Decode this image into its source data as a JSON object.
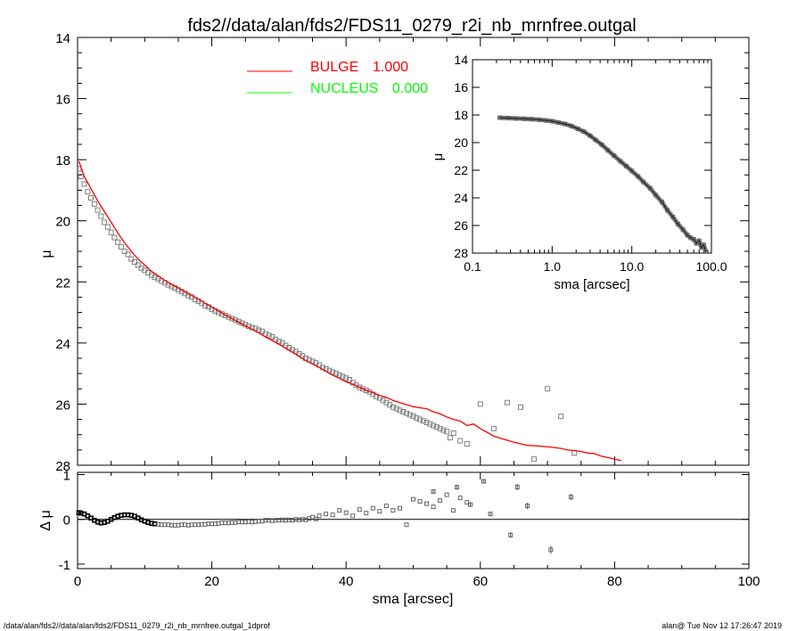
{
  "footer": {
    "left": "/data/alan/fds2//data/alan/fds2/FDS11_0279_r2i_nb_mrnfree.outgal_1dprof",
    "right": "alan@  Tue Nov 12 17:26:47 2019"
  },
  "colors": {
    "bulge": "#ff0000",
    "nucleus": "#00ff00",
    "data": "#808080"
  },
  "chart_data": [
    {
      "id": "main",
      "type": "scatter",
      "title": "fds2//data/alan/fds2/FDS11_0279_r2i_nb_mrnfree.outgal",
      "xlabel": "",
      "ylabel": "μ",
      "xlim": [
        0,
        100
      ],
      "ylim": [
        28,
        14
      ],
      "y_inverted": true,
      "x_ticks": [
        0,
        20,
        40,
        60,
        80,
        100
      ],
      "y_ticks": [
        14,
        16,
        18,
        20,
        22,
        24,
        26,
        28
      ],
      "legend": [
        {
          "label": "BULGE",
          "value": "1.000",
          "color": "#ff0000"
        },
        {
          "label": "NUCLEUS",
          "value": "0.000",
          "color": "#00ff00"
        }
      ],
      "legend_position": "top-center",
      "series": [
        {
          "name": "BULGE",
          "kind": "line",
          "x": [
            0.2,
            1,
            2,
            3,
            4,
            5,
            6,
            7,
            8,
            9,
            10,
            11,
            12,
            13,
            14,
            15,
            16,
            17,
            18,
            19,
            20,
            21,
            22,
            23,
            24,
            25,
            26,
            27,
            28,
            29,
            30,
            31,
            32,
            33,
            34,
            35,
            36,
            37,
            38,
            39,
            40,
            41,
            42,
            43,
            44,
            45,
            46,
            47,
            48,
            49,
            50,
            51,
            52,
            53,
            54,
            55,
            56,
            57,
            58,
            59,
            60,
            61,
            62,
            63,
            64,
            65,
            66,
            67,
            68,
            69,
            70,
            71,
            72,
            73,
            74,
            75,
            76,
            77,
            78,
            79,
            80,
            81
          ],
          "y": [
            18.05,
            18.55,
            18.95,
            19.35,
            19.7,
            20.05,
            20.4,
            20.72,
            21.0,
            21.25,
            21.45,
            21.65,
            21.8,
            21.95,
            22.08,
            22.2,
            22.32,
            22.44,
            22.56,
            22.7,
            22.82,
            22.95,
            23.08,
            23.2,
            23.32,
            23.44,
            23.55,
            23.67,
            23.8,
            23.92,
            24.04,
            24.17,
            24.3,
            24.44,
            24.57,
            24.68,
            24.8,
            24.92,
            25.05,
            25.15,
            25.27,
            25.35,
            25.45,
            25.55,
            25.62,
            25.72,
            25.78,
            25.88,
            25.95,
            26.02,
            26.08,
            26.12,
            26.15,
            26.25,
            26.32,
            26.42,
            26.5,
            26.55,
            26.7,
            26.65,
            26.8,
            26.92,
            27.05,
            27.12,
            27.18,
            27.25,
            27.3,
            27.35,
            27.36,
            27.38,
            27.4,
            27.42,
            27.45,
            27.5,
            27.52,
            27.55,
            27.6,
            27.62,
            27.7,
            27.75,
            27.8,
            27.85
          ]
        },
        {
          "name": "NUCLEUS",
          "kind": "line",
          "x": [],
          "y": []
        },
        {
          "name": "data",
          "kind": "points",
          "x": [
            0.2,
            0.5,
            1,
            1.5,
            2,
            2.5,
            3,
            3.5,
            4,
            4.5,
            5,
            5.5,
            6,
            6.5,
            7,
            7.5,
            8,
            8.5,
            9,
            9.5,
            10,
            10.5,
            11,
            11.5,
            12,
            12.5,
            13,
            13.5,
            14,
            14.5,
            15,
            15.5,
            16,
            16.5,
            17,
            17.5,
            18,
            18.5,
            19,
            19.5,
            20,
            20.5,
            21,
            21.5,
            22,
            22.5,
            23,
            23.5,
            24,
            24.5,
            25,
            25.5,
            26,
            26.5,
            27,
            27.5,
            28,
            28.5,
            29,
            29.5,
            30,
            30.5,
            31,
            31.5,
            32,
            32.5,
            33,
            33.5,
            34,
            34.5,
            35,
            35.5,
            36,
            36.5,
            37,
            37.5,
            38,
            38.5,
            39,
            39.5,
            40,
            40.5,
            41,
            41.5,
            42,
            42.5,
            43,
            43.5,
            44,
            44.5,
            45,
            45.5,
            46,
            46.5,
            47,
            47.5,
            48,
            48.5,
            49,
            49.5,
            50,
            50.5,
            51,
            51.5,
            52,
            52.5,
            53,
            53.5,
            54,
            54.5,
            55,
            55.5,
            56,
            57,
            58,
            60,
            62,
            64,
            66,
            68,
            70,
            72,
            74
          ],
          "y": [
            18.3,
            18.55,
            18.8,
            19.05,
            19.25,
            19.45,
            19.65,
            19.85,
            20.05,
            20.2,
            20.38,
            20.55,
            20.7,
            20.85,
            21.0,
            21.1,
            21.25,
            21.35,
            21.45,
            21.55,
            21.62,
            21.7,
            21.78,
            21.85,
            21.9,
            21.97,
            22.03,
            22.1,
            22.15,
            22.2,
            22.26,
            22.32,
            22.38,
            22.45,
            22.5,
            22.58,
            22.63,
            22.7,
            22.78,
            22.82,
            22.9,
            22.95,
            23.0,
            23.05,
            23.1,
            23.15,
            23.2,
            23.25,
            23.3,
            23.35,
            23.4,
            23.45,
            23.5,
            23.52,
            23.58,
            23.62,
            23.7,
            23.75,
            23.8,
            23.88,
            23.95,
            24.0,
            24.08,
            24.15,
            24.22,
            24.28,
            24.35,
            24.42,
            24.5,
            24.55,
            24.6,
            24.65,
            24.72,
            24.8,
            24.85,
            24.9,
            24.95,
            25.0,
            25.05,
            25.1,
            25.15,
            25.2,
            25.3,
            25.38,
            25.45,
            25.5,
            25.55,
            25.6,
            25.68,
            25.75,
            25.8,
            25.88,
            25.95,
            26.02,
            26.1,
            26.15,
            26.2,
            26.25,
            26.3,
            26.35,
            26.4,
            26.45,
            26.5,
            26.55,
            26.6,
            26.65,
            26.7,
            26.75,
            26.8,
            26.85,
            26.9,
            27.1,
            26.95,
            27.2,
            27.3,
            26.0,
            26.8,
            25.95,
            26.1,
            27.8,
            25.5,
            26.4,
            27.6
          ]
        }
      ]
    },
    {
      "id": "inset",
      "type": "scatter",
      "title": "",
      "xlabel": "sma [arcsec]",
      "ylabel": "μ",
      "x_scale": "log",
      "xlim": [
        0.1,
        100.0
      ],
      "ylim": [
        28,
        14
      ],
      "y_inverted": true,
      "x_tick_labels": [
        "0.1",
        "1.0",
        "10.0",
        "100.0"
      ],
      "x_ticks": [
        0.1,
        1.0,
        10.0,
        100.0
      ],
      "y_ticks": [
        14,
        16,
        18,
        20,
        22,
        24,
        26,
        28
      ],
      "series": [
        {
          "name": "data",
          "kind": "points",
          "x": [
            0.22,
            0.28,
            0.35,
            0.45,
            0.55,
            0.7,
            0.85,
            1.0,
            1.2,
            1.45,
            1.75,
            2.1,
            2.5,
            3.0,
            3.5,
            4.2,
            5.0,
            6.0,
            7.2,
            8.5,
            10,
            12,
            14,
            17,
            20,
            24,
            28,
            33,
            38,
            44,
            50,
            55,
            60,
            65,
            70,
            75,
            80,
            85
          ],
          "y": [
            18.2,
            18.22,
            18.25,
            18.28,
            18.3,
            18.35,
            18.4,
            18.45,
            18.55,
            18.65,
            18.8,
            19.0,
            19.2,
            19.5,
            19.8,
            20.15,
            20.55,
            20.95,
            21.35,
            21.7,
            22.05,
            22.45,
            22.85,
            23.3,
            23.8,
            24.3,
            24.9,
            25.4,
            25.9,
            26.3,
            26.7,
            26.9,
            27.0,
            27.3,
            27.1,
            27.6,
            27.4,
            27.9
          ]
        }
      ]
    },
    {
      "id": "residual",
      "type": "scatter",
      "title": "",
      "xlabel": "sma [arcsec]",
      "ylabel": "Δ μ",
      "xlim": [
        0,
        100
      ],
      "ylim": [
        -1.1,
        1.05
      ],
      "x_ticks": [
        0,
        20,
        40,
        60,
        80,
        100
      ],
      "y_ticks": [
        -1,
        0,
        1
      ],
      "zero_line": true,
      "series": [
        {
          "name": "residual",
          "kind": "points",
          "x": [
            0.2,
            0.5,
            1,
            1.5,
            2,
            2.5,
            3,
            3.5,
            4,
            4.5,
            5,
            5.5,
            6,
            6.5,
            7,
            7.5,
            8,
            8.5,
            9,
            9.5,
            10,
            10.5,
            11,
            11.5,
            12,
            12.5,
            13,
            13.5,
            14,
            14.5,
            15,
            15.5,
            16,
            16.5,
            17,
            17.5,
            18,
            18.5,
            19,
            19.5,
            20,
            20.5,
            21,
            21.5,
            22,
            22.5,
            23,
            23.5,
            24,
            24.5,
            25,
            25.5,
            26,
            26.5,
            27,
            27.5,
            28,
            28.5,
            29,
            29.5,
            30,
            30.5,
            31,
            31.5,
            32,
            32.5,
            33,
            33.5,
            34,
            34.5,
            35,
            35.5,
            36,
            37,
            38,
            39,
            40,
            41,
            42,
            43,
            44,
            45,
            46,
            47,
            48,
            49,
            50,
            51,
            52,
            53,
            54,
            55,
            56,
            57,
            58
          ],
          "y": [
            0.15,
            0.14,
            0.12,
            0.08,
            0.03,
            -0.02,
            -0.06,
            -0.08,
            -0.07,
            -0.04,
            0.0,
            0.04,
            0.07,
            0.09,
            0.1,
            0.1,
            0.09,
            0.07,
            0.03,
            -0.01,
            -0.04,
            -0.07,
            -0.09,
            -0.1,
            -0.11,
            -0.12,
            -0.12,
            -0.12,
            -0.13,
            -0.13,
            -0.13,
            -0.12,
            -0.12,
            -0.13,
            -0.12,
            -0.12,
            -0.12,
            -0.11,
            -0.11,
            -0.1,
            -0.1,
            -0.1,
            -0.09,
            -0.08,
            -0.08,
            -0.08,
            -0.07,
            -0.07,
            -0.06,
            -0.06,
            -0.06,
            -0.05,
            -0.06,
            -0.05,
            -0.04,
            -0.04,
            -0.02,
            -0.02,
            -0.03,
            -0.02,
            -0.02,
            -0.01,
            -0.02,
            -0.01,
            -0.02,
            0.0,
            -0.01,
            0.0,
            -0.01,
            0.02,
            0.05,
            0.01,
            0.08,
            0.12,
            0.1,
            0.2,
            0.15,
            0.08,
            0.22,
            0.14,
            0.25,
            0.18,
            0.3,
            0.2,
            0.25,
            -0.12,
            0.45,
            0.4,
            0.35,
            0.28,
            0.42,
            0.55,
            0.2,
            0.48,
            0.38
          ]
        },
        {
          "name": "residual-errorbars",
          "kind": "errorbars",
          "x": [
            53,
            56.5,
            58.5,
            60.5,
            61.5,
            64.5,
            65.5,
            67,
            70.5,
            73.5
          ],
          "y": [
            0.62,
            0.72,
            0.33,
            0.85,
            0.12,
            -0.35,
            0.72,
            0.3,
            -0.68,
            0.5
          ],
          "err": [
            0.03,
            0.05,
            0.04,
            0.05,
            0.04,
            0.06,
            0.07,
            0.07,
            0.09,
            0.07
          ]
        }
      ]
    }
  ]
}
